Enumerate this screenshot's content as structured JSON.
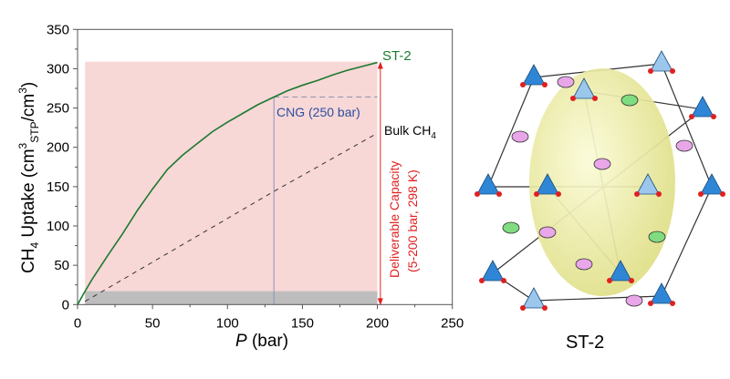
{
  "chart_data": {
    "type": "line",
    "xlabel_italic": "P",
    "xlabel_rest": " (bar)",
    "ylabel": "CH4 Uptake (cm3STP/cm3)",
    "ylabel_parts": {
      "a": "CH",
      "a_sub": "4",
      "b": " Uptake (cm",
      "b_sup": "3",
      "b_sub": "STP",
      "c": "/cm",
      "c_sup": "3",
      "d": ")"
    },
    "xlim": [
      0,
      250
    ],
    "ylim": [
      0,
      350
    ],
    "xticks": [
      0,
      50,
      100,
      150,
      200,
      250
    ],
    "yticks": [
      0,
      50,
      100,
      150,
      200,
      250,
      300,
      350
    ],
    "series": [
      {
        "name": "ST-2",
        "color": "#1b7a2e",
        "style": "solid",
        "x": [
          0,
          5,
          10,
          20,
          25,
          30,
          40,
          50,
          60,
          70,
          80,
          90,
          100,
          110,
          120,
          131,
          140,
          150,
          160,
          170,
          180,
          190,
          200
        ],
        "y": [
          0,
          17,
          33,
          62,
          76,
          90,
          120,
          147,
          172,
          190,
          205,
          220,
          232,
          243,
          254,
          264,
          272,
          279,
          285,
          292,
          298,
          303,
          308
        ]
      },
      {
        "name": "Bulk CH4",
        "color": "#333333",
        "style": "dashed",
        "x": [
          5,
          131,
          200
        ],
        "y": [
          4,
          144,
          218
        ]
      }
    ],
    "regions": {
      "deliverable": {
        "x": [
          5,
          200
        ],
        "y": [
          0,
          309
        ],
        "color": "#f8d7d7"
      },
      "low": {
        "x": [
          5,
          200
        ],
        "y": [
          0,
          17
        ],
        "color": "#bdbdbd"
      }
    },
    "cng": {
      "x": 131,
      "y": 264,
      "x_end": 200,
      "label": "CNG (250 bar)",
      "color": "#2a4fa0"
    },
    "annotations": {
      "st2": "ST-2",
      "bulk": "Bulk CH",
      "bulk_sub": "4",
      "deliverable_line1": "Deliverable Capacity",
      "deliverable_line2": "(5-200 bar, 298 K)",
      "deliverable_color": "#e02020"
    }
  },
  "structure": {
    "label": "ST-2"
  }
}
